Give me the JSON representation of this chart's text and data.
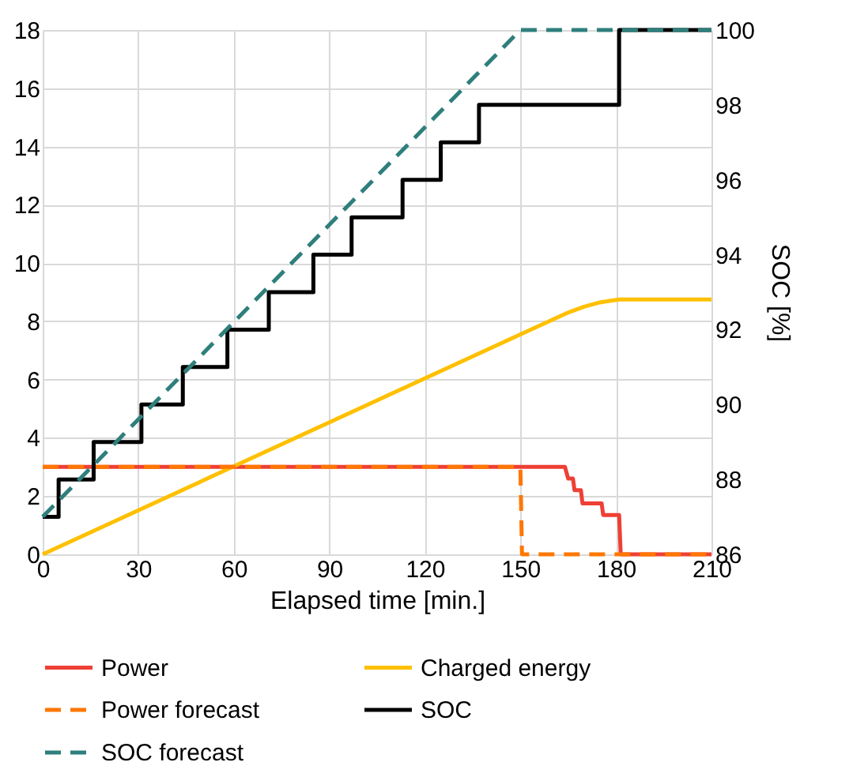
{
  "chart_data": {
    "type": "line",
    "xlabel": "Elapsed time [min.]",
    "y2label": "SOC [%]",
    "xlim": [
      0,
      210
    ],
    "xticks": [
      0,
      30,
      60,
      90,
      120,
      150,
      180,
      210
    ],
    "ylim": [
      0,
      18
    ],
    "yticks": [
      0,
      2,
      4,
      6,
      8,
      10,
      12,
      14,
      16,
      18
    ],
    "y2lim": [
      86,
      100
    ],
    "y2ticks": [
      86,
      88,
      90,
      92,
      94,
      96,
      98,
      100
    ],
    "grid": true,
    "legend": "bottom",
    "series": [
      {
        "name": "Power",
        "color": "#ee4035",
        "line_style": "solid",
        "x": [
          0,
          164,
          165,
          166.5,
          167,
          169,
          169.5,
          175.5,
          176,
          181,
          181.5,
          210
        ],
        "values": [
          3,
          3,
          2.6,
          2.6,
          2.2,
          2.2,
          1.75,
          1.75,
          1.35,
          1.35,
          0,
          0
        ]
      },
      {
        "name": "Charged energy",
        "color": "#ffc000",
        "line_style": "solid",
        "x": [
          0,
          150,
          165,
          170,
          175,
          181,
          210
        ],
        "values": [
          0,
          7.55,
          8.3,
          8.5,
          8.65,
          8.75,
          8.75
        ]
      },
      {
        "name": "Power forecast",
        "color": "#ff7700",
        "line_style": "dashed",
        "x": [
          0,
          150,
          150.5,
          210
        ],
        "values": [
          3,
          3,
          0,
          0
        ]
      },
      {
        "name": "SOC",
        "color": "#000000",
        "type": "step",
        "axis": "y2",
        "line_style": "solid",
        "x": [
          0,
          5,
          16,
          31,
          44,
          58,
          71,
          85,
          97,
          113,
          125,
          137,
          181,
          210
        ],
        "values": [
          87,
          88,
          89,
          90,
          91,
          92,
          93,
          94,
          95,
          96,
          97,
          98,
          100,
          100
        ]
      },
      {
        "name": "SOC forecast",
        "color": "#2f7f7c",
        "axis": "y2",
        "line_style": "dashed",
        "x": [
          0,
          150,
          210
        ],
        "values": [
          87,
          100,
          100
        ]
      }
    ]
  }
}
